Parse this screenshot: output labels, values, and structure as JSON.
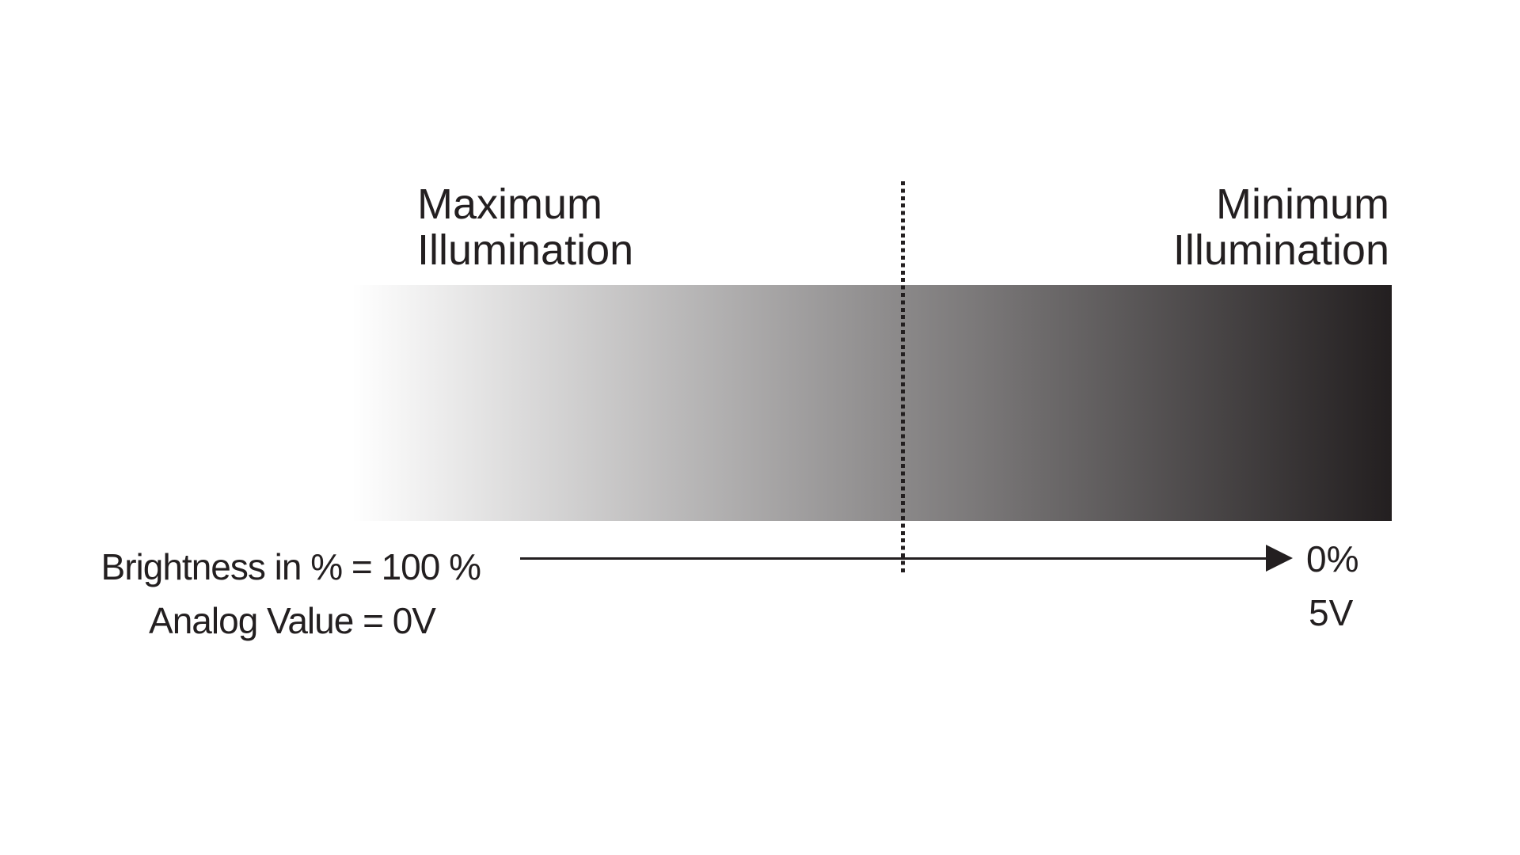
{
  "diagram": {
    "title_semantics": "Illumination brightness gradient diagram",
    "top_labels": {
      "left": {
        "line1": "Maximum",
        "line2": "Illumination"
      },
      "right": {
        "line1": "Minimum",
        "line2": "Illumination"
      }
    },
    "gradient_bar": {
      "start_color": "#ffffff",
      "end_color": "#231f20",
      "direction": "left-to-right",
      "meaning_left": "Maximum Illumination",
      "meaning_right": "Minimum Illumination"
    },
    "divider": {
      "style": "dotted-vertical",
      "color": "#231f20"
    },
    "axis": {
      "left_label_line1": "Brightness in % = 100 %",
      "left_label_line2": "Analog Value = 0V",
      "right_label_line1": "0%",
      "right_label_line2": "5V",
      "arrow_direction": "right",
      "line_color": "#231f20"
    },
    "ink_color": "#231f20",
    "background_color": "#ffffff"
  }
}
